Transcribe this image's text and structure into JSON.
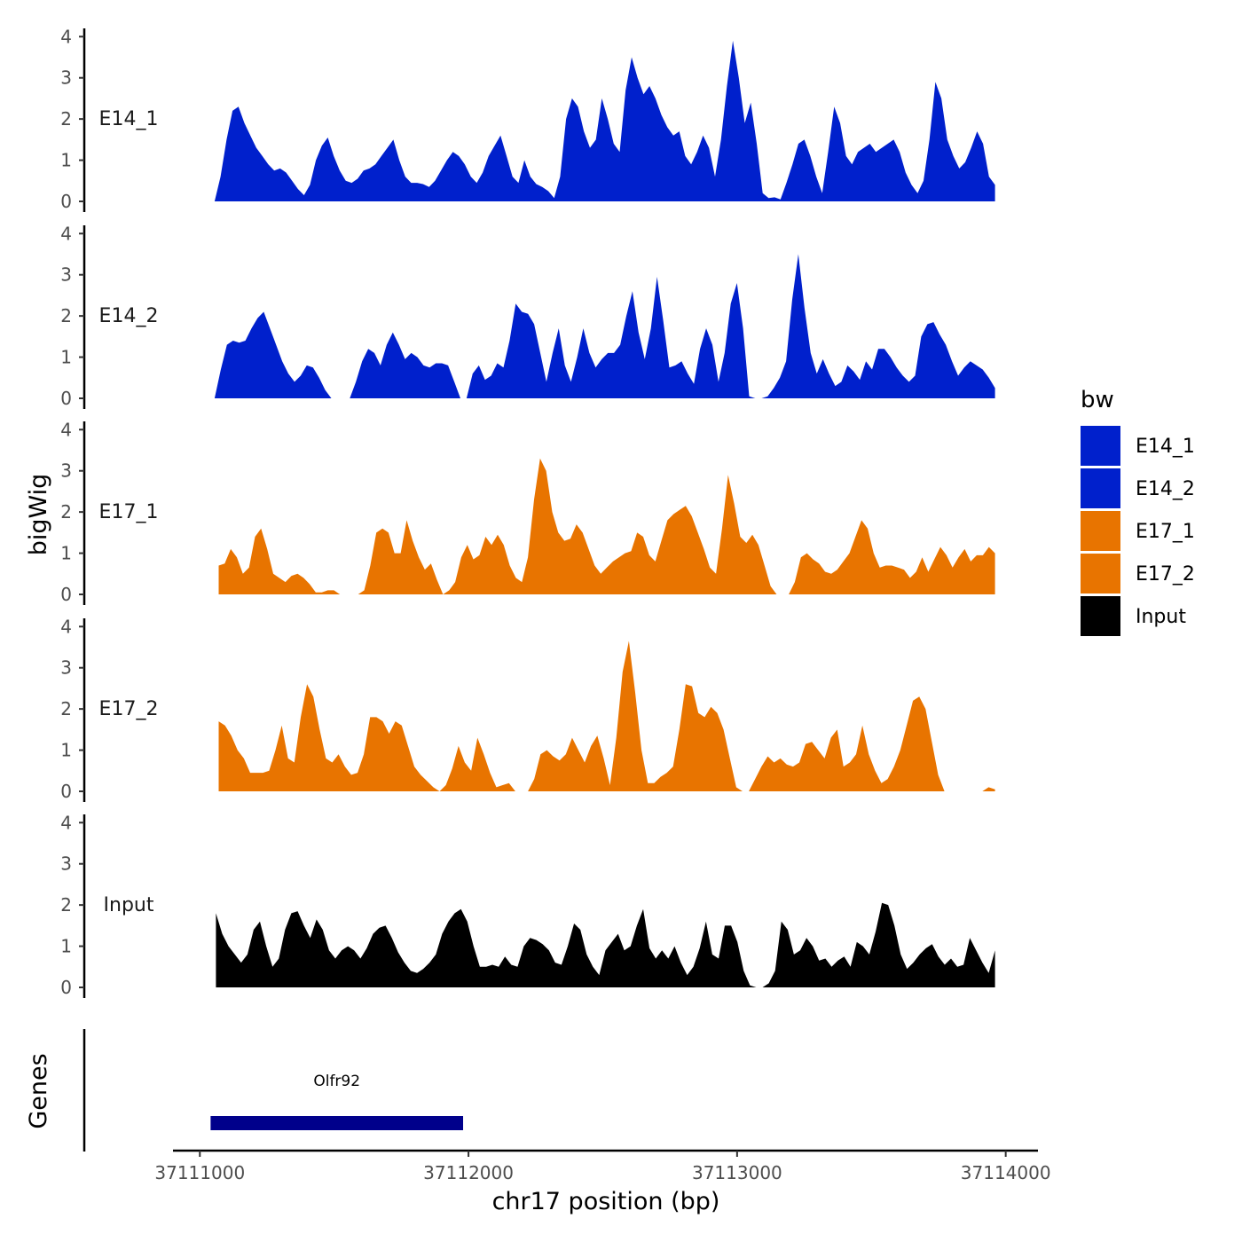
{
  "chart_data": {
    "type": "area",
    "title": "",
    "ylabel": "bigWig",
    "xlabel": "chr17 position (bp)",
    "genes_label": "Genes",
    "x_range": [
      37110900,
      37114120
    ],
    "y_range": [
      0,
      4.2
    ],
    "y_ticks": [
      "0",
      "1",
      "2",
      "3",
      "4"
    ],
    "x_ticks": [
      {
        "value": 37111000,
        "label": "37111000"
      },
      {
        "value": 37112000,
        "label": "37112000"
      },
      {
        "value": 37113000,
        "label": "37113000"
      },
      {
        "value": 37114000,
        "label": "37114000"
      }
    ],
    "legend": {
      "title": "bw",
      "position": "right"
    },
    "series": [
      {
        "name": "E14_1",
        "color": "#0020cc",
        "x_start": 37111055,
        "x_end": 37113960,
        "values": [
          0.0,
          0.6,
          1.5,
          2.2,
          2.3,
          1.9,
          1.6,
          1.3,
          1.1,
          0.9,
          0.75,
          0.8,
          0.7,
          0.5,
          0.3,
          0.15,
          0.4,
          1.0,
          1.35,
          1.55,
          1.1,
          0.75,
          0.5,
          0.45,
          0.55,
          0.75,
          0.8,
          0.9,
          1.1,
          1.3,
          1.5,
          1.0,
          0.6,
          0.45,
          0.45,
          0.42,
          0.35,
          0.5,
          0.75,
          1.0,
          1.2,
          1.1,
          0.9,
          0.6,
          0.45,
          0.7,
          1.1,
          1.35,
          1.6,
          1.1,
          0.6,
          0.45,
          1.0,
          0.6,
          0.42,
          0.35,
          0.25,
          0.08,
          0.6,
          2.0,
          2.5,
          2.3,
          1.7,
          1.3,
          1.5,
          2.5,
          2.0,
          1.4,
          1.2,
          2.7,
          3.5,
          3.0,
          2.6,
          2.8,
          2.5,
          2.1,
          1.8,
          1.6,
          1.7,
          1.1,
          0.9,
          1.2,
          1.6,
          1.3,
          0.6,
          1.5,
          2.8,
          3.9,
          3.0,
          1.9,
          2.4,
          1.4,
          0.2,
          0.08,
          0.1,
          0.05,
          0.45,
          0.9,
          1.4,
          1.5,
          1.1,
          0.6,
          0.2,
          1.2,
          2.3,
          1.9,
          1.1,
          0.9,
          1.2,
          1.3,
          1.4,
          1.2,
          1.3,
          1.4,
          1.5,
          1.2,
          0.7,
          0.4,
          0.2,
          0.5,
          1.5,
          2.9,
          2.5,
          1.5,
          1.1,
          0.8,
          0.95,
          1.3,
          1.7,
          1.4,
          0.6,
          0.4
        ]
      },
      {
        "name": "E14_2",
        "color": "#0020cc",
        "x_start": 37111055,
        "x_end": 37113960,
        "values": [
          0.0,
          0.7,
          1.3,
          1.4,
          1.35,
          1.4,
          1.7,
          1.95,
          2.1,
          1.7,
          1.3,
          0.9,
          0.6,
          0.4,
          0.55,
          0.8,
          0.75,
          0.5,
          0.2,
          0.0,
          0.0,
          0.0,
          0.0,
          0.4,
          0.9,
          1.2,
          1.1,
          0.8,
          1.3,
          1.6,
          1.3,
          0.95,
          1.1,
          1.0,
          0.8,
          0.75,
          0.85,
          0.85,
          0.8,
          0.4,
          0.0,
          0.0,
          0.6,
          0.8,
          0.45,
          0.55,
          0.85,
          0.75,
          1.4,
          2.3,
          2.1,
          2.05,
          1.8,
          1.1,
          0.4,
          1.1,
          1.7,
          0.8,
          0.4,
          1.0,
          1.7,
          1.1,
          0.75,
          0.95,
          1.1,
          1.1,
          1.3,
          2.0,
          2.6,
          1.6,
          0.95,
          1.7,
          2.95,
          1.9,
          0.75,
          0.8,
          0.9,
          0.6,
          0.35,
          1.2,
          1.7,
          1.3,
          0.4,
          1.1,
          2.3,
          2.8,
          1.7,
          0.05,
          0.0,
          0.0,
          0.05,
          0.25,
          0.5,
          0.9,
          2.4,
          3.5,
          2.2,
          1.1,
          0.6,
          0.95,
          0.6,
          0.3,
          0.4,
          0.8,
          0.65,
          0.45,
          0.9,
          0.7,
          1.2,
          1.2,
          1.0,
          0.75,
          0.55,
          0.4,
          0.55,
          1.5,
          1.8,
          1.85,
          1.55,
          1.3,
          0.9,
          0.55,
          0.75,
          0.9,
          0.8,
          0.7,
          0.5,
          0.25
        ]
      },
      {
        "name": "E17_1",
        "color": "#e87400",
        "x_start": 37111070,
        "x_end": 37113960,
        "values": [
          0.7,
          0.75,
          1.1,
          0.9,
          0.5,
          0.65,
          1.4,
          1.6,
          1.1,
          0.5,
          0.4,
          0.3,
          0.45,
          0.5,
          0.4,
          0.25,
          0.05,
          0.05,
          0.1,
          0.1,
          0.0,
          0.0,
          0.0,
          0.0,
          0.1,
          0.7,
          1.5,
          1.6,
          1.5,
          1.0,
          1.0,
          1.8,
          1.3,
          0.9,
          0.6,
          0.75,
          0.35,
          0.0,
          0.1,
          0.3,
          0.9,
          1.2,
          0.85,
          0.95,
          1.4,
          1.2,
          1.45,
          1.2,
          0.7,
          0.4,
          0.3,
          0.9,
          2.3,
          3.3,
          3.0,
          2.0,
          1.5,
          1.3,
          1.35,
          1.7,
          1.5,
          1.1,
          0.7,
          0.5,
          0.65,
          0.8,
          0.9,
          1.0,
          1.05,
          1.5,
          1.4,
          0.95,
          0.8,
          1.3,
          1.8,
          1.95,
          2.05,
          2.15,
          1.9,
          1.5,
          1.1,
          0.65,
          0.5,
          1.6,
          2.9,
          2.2,
          1.4,
          1.25,
          1.45,
          1.2,
          0.7,
          0.2,
          0.0,
          0.0,
          0.0,
          0.3,
          0.9,
          1.0,
          0.85,
          0.75,
          0.55,
          0.5,
          0.6,
          0.8,
          1.0,
          1.4,
          1.8,
          1.6,
          1.0,
          0.65,
          0.7,
          0.7,
          0.65,
          0.6,
          0.4,
          0.55,
          0.9,
          0.55,
          0.85,
          1.15,
          0.95,
          0.65,
          0.9,
          1.1,
          0.8,
          0.95,
          0.95,
          1.15,
          1.0
        ]
      },
      {
        "name": "E17_2",
        "color": "#e87400",
        "x_start": 37111070,
        "x_end": 37113960,
        "values": [
          1.7,
          1.6,
          1.35,
          1.0,
          0.8,
          0.45,
          0.45,
          0.45,
          0.5,
          1.0,
          1.6,
          0.8,
          0.7,
          1.8,
          2.6,
          2.3,
          1.5,
          0.8,
          0.7,
          0.9,
          0.6,
          0.4,
          0.45,
          0.9,
          1.8,
          1.8,
          1.7,
          1.4,
          1.7,
          1.6,
          1.1,
          0.6,
          0.4,
          0.25,
          0.1,
          0.0,
          0.15,
          0.55,
          1.1,
          0.7,
          0.5,
          1.3,
          0.9,
          0.45,
          0.1,
          0.15,
          0.2,
          0.0,
          0.0,
          0.0,
          0.3,
          0.9,
          1.0,
          0.85,
          0.75,
          0.9,
          1.3,
          1.0,
          0.7,
          1.1,
          1.35,
          0.8,
          0.15,
          1.3,
          2.9,
          3.65,
          2.4,
          1.0,
          0.2,
          0.2,
          0.35,
          0.45,
          0.6,
          1.5,
          2.6,
          2.55,
          1.9,
          1.8,
          2.05,
          1.9,
          1.5,
          0.8,
          0.1,
          0.0,
          0.0,
          0.3,
          0.6,
          0.85,
          0.7,
          0.8,
          0.65,
          0.6,
          0.7,
          1.15,
          1.2,
          1.0,
          0.8,
          1.3,
          1.5,
          0.6,
          0.7,
          0.9,
          1.6,
          0.9,
          0.5,
          0.2,
          0.3,
          0.6,
          1.0,
          1.6,
          2.2,
          2.3,
          2.0,
          1.2,
          0.4,
          0.0,
          0.0,
          0.0,
          0.0,
          0.0,
          0.0,
          0.0,
          0.1,
          0.05
        ]
      },
      {
        "name": "Input",
        "color": "#000000",
        "x_start": 37111060,
        "x_end": 37113960,
        "values": [
          1.8,
          1.3,
          1.0,
          0.8,
          0.6,
          0.8,
          1.4,
          1.6,
          1.0,
          0.5,
          0.7,
          1.4,
          1.8,
          1.85,
          1.5,
          1.2,
          1.65,
          1.4,
          0.9,
          0.7,
          0.9,
          1.0,
          0.9,
          0.7,
          0.95,
          1.3,
          1.45,
          1.5,
          1.2,
          0.85,
          0.6,
          0.4,
          0.35,
          0.45,
          0.6,
          0.8,
          1.3,
          1.6,
          1.8,
          1.9,
          1.6,
          1.0,
          0.5,
          0.5,
          0.55,
          0.5,
          0.75,
          0.55,
          0.5,
          1.0,
          1.2,
          1.15,
          1.05,
          0.9,
          0.6,
          0.55,
          1.0,
          1.55,
          1.4,
          0.8,
          0.5,
          0.3,
          0.9,
          1.1,
          1.3,
          0.9,
          1.0,
          1.5,
          1.9,
          0.95,
          0.7,
          0.9,
          0.7,
          1.0,
          0.6,
          0.3,
          0.5,
          0.95,
          1.6,
          0.8,
          0.7,
          1.5,
          1.5,
          1.1,
          0.4,
          0.05,
          0.0,
          0.0,
          0.1,
          0.4,
          1.6,
          1.4,
          0.8,
          0.9,
          1.2,
          1.0,
          0.65,
          0.7,
          0.5,
          0.65,
          0.75,
          0.5,
          1.1,
          1.0,
          0.8,
          1.35,
          2.05,
          2.0,
          1.5,
          0.8,
          0.45,
          0.6,
          0.8,
          0.95,
          1.05,
          0.75,
          0.55,
          0.7,
          0.5,
          0.55,
          1.2,
          0.9,
          0.6,
          0.35,
          0.9
        ]
      }
    ],
    "genes": [
      {
        "name": "Olfr92",
        "start": 37111040,
        "end": 37111980,
        "color": "#00008b"
      }
    ]
  }
}
